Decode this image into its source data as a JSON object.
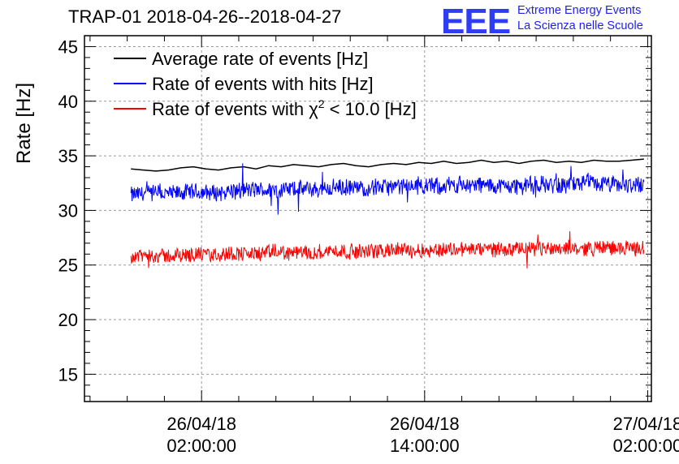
{
  "title": "TRAP-01 2018-04-26--2018-04-27",
  "logo": {
    "mark": "EEE",
    "line1": "Extreme Energy Events",
    "line2": "La Scienza nelle Scuole"
  },
  "chart_data": {
    "type": "line",
    "ylabel": "Rate [Hz]",
    "xlabel": "",
    "ylim": [
      12.5,
      46
    ],
    "yticks": [
      15,
      20,
      25,
      30,
      35,
      40,
      45
    ],
    "xtick_hours": [
      0,
      12,
      24
    ],
    "xtick_labels": [
      [
        "26/04/18",
        "02:00:00"
      ],
      [
        "26/04/18",
        "14:00:00"
      ],
      [
        "27/04/18",
        "02:00:00"
      ]
    ],
    "xlim_hours": [
      -6.3,
      24.2
    ],
    "grid": true,
    "legend_position": "top-left",
    "series": [
      {
        "name": "Average rate of events [Hz]",
        "color": "#000000",
        "style": "smooth",
        "x_start_hours": -3.8,
        "x_end_hours": 23.8,
        "values": [
          33.8,
          33.7,
          33.6,
          33.7,
          33.9,
          34.0,
          33.8,
          33.7,
          33.9,
          34.0,
          33.8,
          34.1,
          34.0,
          34.2,
          34.1,
          34.0,
          34.2,
          34.3,
          34.1,
          34.0,
          34.2,
          34.3,
          34.2,
          34.4,
          34.3,
          34.5,
          34.3,
          34.4,
          34.6,
          34.4,
          34.5,
          34.3,
          34.5,
          34.6,
          34.4,
          34.5,
          34.4,
          34.6,
          34.5,
          34.5,
          34.6,
          34.7
        ]
      },
      {
        "name": "Rate of events with hits [Hz]",
        "color": "#0000ff",
        "style": "noisy",
        "x_start_hours": -3.8,
        "x_end_hours": 23.8,
        "values": [
          31.4,
          31.6,
          31.5,
          31.7,
          31.6,
          31.8,
          31.9,
          31.8,
          32.0,
          31.9,
          32.1,
          32.0,
          32.2,
          32.1,
          32.3,
          32.2,
          32.4,
          32.3,
          32.2,
          32.3,
          32.4,
          32.3,
          32.5,
          32.4,
          32.3,
          32.4
        ],
        "noise": 0.9,
        "min": 29.0,
        "max": 34.6
      },
      {
        "name": "Rate of events with χ2 < 10.0 [Hz]",
        "label_main": "Rate of events with χ",
        "label_sup": "2",
        "label_tail": " < 10.0 [Hz]",
        "color": "#ff0000",
        "style": "noisy",
        "x_start_hours": -3.8,
        "x_end_hours": 23.8,
        "values": [
          25.8,
          25.9,
          25.8,
          26.0,
          25.9,
          26.1,
          26.0,
          26.2,
          26.1,
          26.2,
          26.3,
          26.2,
          26.3,
          26.4,
          26.3,
          26.4,
          26.5,
          26.4,
          26.5,
          26.4,
          26.5,
          26.6,
          26.5,
          26.6,
          26.5,
          26.6
        ],
        "noise": 0.8,
        "min": 23.6,
        "max": 28.9
      }
    ]
  }
}
